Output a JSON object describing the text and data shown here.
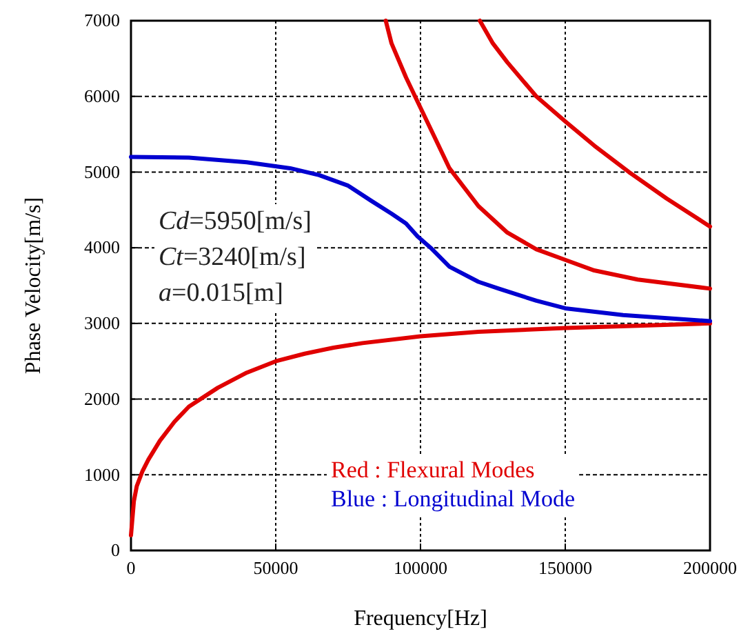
{
  "chart_data": {
    "type": "line",
    "xlabel": "Frequency[Hz]",
    "ylabel": "Phase Velocity[m/s]",
    "xlim": [
      0,
      200000
    ],
    "xticks": [
      0,
      50000,
      100000,
      150000,
      200000
    ],
    "ylim": [
      0,
      7000
    ],
    "yticks": [
      0,
      1000,
      2000,
      3000,
      4000,
      5000,
      6000,
      7000
    ],
    "grid": true,
    "legend": "bottom right",
    "marker": "none",
    "line_style": "solid",
    "annotations": [
      "Cd=5950[m/s]",
      "Ct=3240[m/s]",
      "a=0.015[m]"
    ],
    "series": [
      {
        "name": "Red : Flexural Modes",
        "color": "#e00000",
        "x": [
          0,
          1000,
          2000,
          4000,
          6000,
          10000,
          15000,
          20000,
          30000,
          40000,
          50000,
          60000,
          70000,
          80000,
          100000,
          120000,
          150000,
          175000,
          200000
        ],
        "values": [
          200,
          650,
          850,
          1050,
          1200,
          1450,
          1700,
          1900,
          2150,
          2350,
          2500,
          2600,
          2680,
          2740,
          2830,
          2890,
          2940,
          2970,
          3000
        ]
      },
      {
        "color": "#e00000",
        "x": [
          88000,
          90000,
          95000,
          100000,
          105000,
          110000,
          120000,
          130000,
          140000,
          150000,
          160000,
          175000,
          200000
        ],
        "values": [
          7000,
          6700,
          6250,
          5850,
          5450,
          5050,
          4550,
          4200,
          3980,
          3840,
          3700,
          3580,
          3460
        ]
      },
      {
        "color": "#e00000",
        "x": [
          120500,
          125000,
          130000,
          140000,
          150000,
          160000,
          172000,
          185000,
          200000
        ],
        "values": [
          7000,
          6700,
          6450,
          6000,
          5670,
          5350,
          5000,
          4650,
          4280
        ]
      },
      {
        "name": "Blue : Longitudinal Mode",
        "color": "#0000d0",
        "x": [
          0,
          20000,
          40000,
          55000,
          65000,
          75000,
          83000,
          90000,
          95000,
          99000,
          103500,
          110000,
          120000,
          127000,
          140000,
          150000,
          170000,
          200000
        ],
        "values": [
          5200,
          5190,
          5130,
          5050,
          4960,
          4820,
          4620,
          4450,
          4320,
          4150,
          4000,
          3750,
          3550,
          3460,
          3300,
          3200,
          3110,
          3030
        ]
      }
    ]
  }
}
